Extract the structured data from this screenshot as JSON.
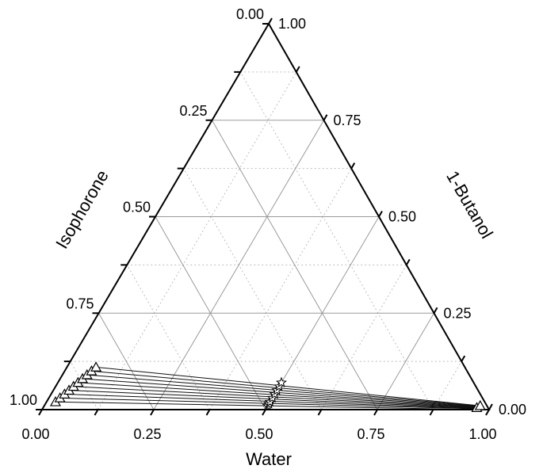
{
  "chart_data": {
    "type": "ternary",
    "axes": {
      "bottom": {
        "label": "Water",
        "ticks": [
          "0.00",
          "0.25",
          "0.50",
          "0.75",
          "1.00"
        ]
      },
      "left": {
        "label": "Isophorone",
        "ticks": [
          "1.00",
          "0.75",
          "0.50",
          "0.25",
          "0.00"
        ]
      },
      "right": {
        "label": "1-Butanol",
        "ticks": [
          "0.00",
          "0.25",
          "0.50",
          "0.75",
          "1.00"
        ]
      }
    },
    "grid": {
      "major": 0.25,
      "minor": 0.125,
      "minor_style": "dotted"
    },
    "series": [
      {
        "marker": "triangle",
        "points": [
          {
            "water": 0.02,
            "butanol": 0.02
          },
          {
            "water": 0.025,
            "butanol": 0.03
          },
          {
            "water": 0.03,
            "butanol": 0.04
          },
          {
            "water": 0.035,
            "butanol": 0.05
          },
          {
            "water": 0.04,
            "butanol": 0.06
          },
          {
            "water": 0.045,
            "butanol": 0.07
          },
          {
            "water": 0.05,
            "butanol": 0.08
          },
          {
            "water": 0.055,
            "butanol": 0.09
          },
          {
            "water": 0.06,
            "butanol": 0.1
          },
          {
            "water": 0.065,
            "butanol": 0.11
          },
          {
            "water": 0.97,
            "butanol": 0.005
          },
          {
            "water": 0.975,
            "butanol": 0.01
          }
        ]
      },
      {
        "marker": "star",
        "points": [
          {
            "water": 0.5,
            "butanol": 0.01
          },
          {
            "water": 0.5,
            "butanol": 0.015
          },
          {
            "water": 0.5,
            "butanol": 0.02
          },
          {
            "water": 0.5,
            "butanol": 0.03
          },
          {
            "water": 0.5,
            "butanol": 0.04
          },
          {
            "water": 0.5,
            "butanol": 0.05
          },
          {
            "water": 0.5,
            "butanol": 0.06
          },
          {
            "water": 0.5,
            "butanol": 0.07
          }
        ]
      }
    ],
    "tie_lines": [
      {
        "from": {
          "water": 0.02,
          "butanol": 0.02
        },
        "to": {
          "water": 0.975,
          "butanol": 0.0
        }
      },
      {
        "from": {
          "water": 0.025,
          "butanol": 0.03
        },
        "to": {
          "water": 0.975,
          "butanol": 0.002
        }
      },
      {
        "from": {
          "water": 0.03,
          "butanol": 0.04
        },
        "to": {
          "water": 0.975,
          "butanol": 0.003
        }
      },
      {
        "from": {
          "water": 0.035,
          "butanol": 0.05
        },
        "to": {
          "water": 0.975,
          "butanol": 0.004
        }
      },
      {
        "from": {
          "water": 0.04,
          "butanol": 0.06
        },
        "to": {
          "water": 0.975,
          "butanol": 0.005
        }
      },
      {
        "from": {
          "water": 0.045,
          "butanol": 0.07
        },
        "to": {
          "water": 0.975,
          "butanol": 0.006
        }
      },
      {
        "from": {
          "water": 0.05,
          "butanol": 0.08
        },
        "to": {
          "water": 0.975,
          "butanol": 0.007
        }
      },
      {
        "from": {
          "water": 0.055,
          "butanol": 0.09
        },
        "to": {
          "water": 0.975,
          "butanol": 0.008
        }
      },
      {
        "from": {
          "water": 0.06,
          "butanol": 0.1
        },
        "to": {
          "water": 0.975,
          "butanol": 0.009
        }
      },
      {
        "from": {
          "water": 0.065,
          "butanol": 0.11
        },
        "to": {
          "water": 0.975,
          "butanol": 0.01
        }
      }
    ]
  }
}
